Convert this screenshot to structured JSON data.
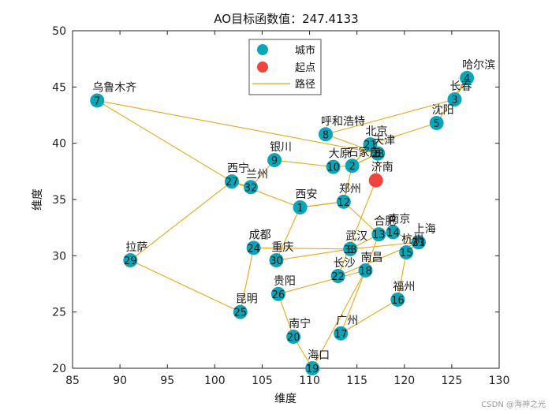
{
  "chart_data": {
    "type": "scatter",
    "title": "AO目标函数值：247.4133",
    "xlabel": "维度",
    "ylabel": "维度",
    "xlim": [
      85,
      130
    ],
    "ylim": [
      20,
      50
    ],
    "xticks": [
      85,
      90,
      95,
      100,
      105,
      110,
      115,
      120,
      125,
      130
    ],
    "yticks": [
      20,
      25,
      30,
      35,
      40,
      45,
      50
    ],
    "grid": false,
    "legend_position": "top-center",
    "legend": [
      {
        "label": "城市",
        "kind": "city"
      },
      {
        "label": "起点",
        "kind": "start"
      },
      {
        "label": "路径",
        "kind": "path"
      }
    ],
    "colors": {
      "city": "#0aa6b8",
      "start": "#f0453c",
      "path": "#e6a817"
    },
    "start": {
      "x": 117.0,
      "y": 36.7
    },
    "cities": [
      {
        "id": "1",
        "name": "西安",
        "x": 109.0,
        "y": 34.3
      },
      {
        "id": "2",
        "name": "石家庄",
        "x": 114.5,
        "y": 38.0
      },
      {
        "id": "3",
        "name": "",
        "x": 114.3,
        "y": 30.6
      },
      {
        "id": "4",
        "name": "哈尔滨",
        "x": 126.6,
        "y": 45.8
      },
      {
        "id": "5",
        "name": "沈阳",
        "x": 123.4,
        "y": 41.8
      },
      {
        "id": "6",
        "name": "",
        "x": 117.2,
        "y": 39.1
      },
      {
        "id": "7",
        "name": "乌鲁木齐",
        "x": 87.6,
        "y": 43.8
      },
      {
        "id": "8",
        "name": "呼和浩特",
        "x": 111.7,
        "y": 40.8
      },
      {
        "id": "9",
        "name": "",
        "x": 106.3,
        "y": 38.5
      },
      {
        "id": "10",
        "name": "大原",
        "x": 112.5,
        "y": 37.9
      },
      {
        "id": "12",
        "name": "郑州",
        "x": 113.6,
        "y": 34.8
      },
      {
        "id": "13",
        "name": "合肥",
        "x": 117.3,
        "y": 31.9
      },
      {
        "id": "14",
        "name": "",
        "x": 118.8,
        "y": 32.1
      },
      {
        "id": "15",
        "name": "杭州",
        "x": 120.2,
        "y": 30.3
      },
      {
        "id": "16",
        "name": "福州",
        "x": 119.3,
        "y": 26.1
      },
      {
        "id": "17",
        "name": "广州",
        "x": 113.3,
        "y": 23.1
      },
      {
        "id": "18",
        "name": "南昌",
        "x": 115.9,
        "y": 28.7
      },
      {
        "id": "19",
        "name": "海口",
        "x": 110.3,
        "y": 20.0
      },
      {
        "id": "20",
        "name": "南宁",
        "x": 108.3,
        "y": 22.8
      },
      {
        "id": "21",
        "name": "北京",
        "x": 116.4,
        "y": 39.9
      },
      {
        "id": "22",
        "name": "长沙",
        "x": 113.0,
        "y": 28.2
      },
      {
        "id": "23",
        "name": "上海",
        "x": 121.5,
        "y": 31.2
      },
      {
        "id": "24",
        "name": "成都",
        "x": 104.1,
        "y": 30.7
      },
      {
        "id": "25",
        "name": "昆明",
        "x": 102.7,
        "y": 25.0
      },
      {
        "id": "26",
        "name": "",
        "x": 106.7,
        "y": 26.6
      },
      {
        "id": "27",
        "name": "西宁",
        "x": 101.8,
        "y": 36.6
      },
      {
        "id": "28",
        "name": "天津",
        "x": 117.2,
        "y": 39.1
      },
      {
        "id": "29",
        "name": "拉萨",
        "x": 91.1,
        "y": 29.6
      },
      {
        "id": "30",
        "name": "重庆",
        "x": 106.5,
        "y": 29.6
      },
      {
        "id": "31",
        "name": "",
        "x": 121.5,
        "y": 31.2
      },
      {
        "id": "32",
        "name": "兰州",
        "x": 103.8,
        "y": 36.1
      },
      {
        "id": "33",
        "name": "",
        "x": 114.3,
        "y": 30.6
      },
      {
        "id": "3b",
        "name": "长春",
        "x": 125.3,
        "y": 43.9
      }
    ],
    "extra_labels": [
      {
        "text": "银川",
        "x": 106.3,
        "y": 38.5
      },
      {
        "text": "济南",
        "x": 117.0,
        "y": 36.7
      },
      {
        "text": "南京",
        "x": 118.8,
        "y": 32.1
      },
      {
        "text": "武汉",
        "x": 114.3,
        "y": 30.6
      },
      {
        "text": "贵阳",
        "x": 106.7,
        "y": 26.6
      }
    ],
    "route": [
      [
        117.0,
        36.7
      ],
      [
        117.2,
        39.1
      ],
      [
        116.4,
        39.9
      ],
      [
        114.5,
        38.0
      ],
      [
        116.4,
        39.9
      ],
      [
        123.4,
        41.8
      ],
      [
        126.6,
        45.8
      ],
      [
        125.3,
        43.9
      ],
      [
        111.7,
        40.8
      ],
      [
        117.2,
        39.1
      ],
      [
        114.5,
        38.0
      ],
      [
        112.5,
        37.9
      ],
      [
        106.3,
        38.5
      ],
      [
        103.8,
        36.1
      ],
      [
        101.8,
        36.6
      ],
      [
        87.6,
        43.8
      ],
      [
        117.2,
        39.1
      ],
      [
        114.5,
        38.0
      ],
      [
        113.6,
        34.8
      ],
      [
        109.0,
        34.3
      ],
      [
        113.6,
        34.8
      ],
      [
        117.3,
        31.9
      ],
      [
        118.8,
        32.1
      ],
      [
        121.5,
        31.2
      ],
      [
        120.2,
        30.3
      ],
      [
        119.3,
        26.1
      ],
      [
        113.3,
        23.1
      ],
      [
        115.9,
        28.7
      ],
      [
        110.3,
        20.0
      ],
      [
        108.3,
        22.8
      ],
      [
        106.7,
        26.6
      ],
      [
        115.9,
        28.7
      ],
      [
        117.3,
        31.9
      ],
      [
        114.3,
        30.6
      ],
      [
        104.1,
        30.7
      ],
      [
        102.7,
        25.0
      ],
      [
        91.1,
        29.6
      ],
      [
        101.8,
        36.6
      ],
      [
        109.0,
        34.3
      ],
      [
        106.5,
        29.6
      ],
      [
        114.3,
        30.6
      ],
      [
        121.5,
        31.2
      ],
      [
        113.0,
        28.2
      ],
      [
        117.0,
        36.7
      ]
    ]
  },
  "watermark": "CSDN @海神之光"
}
